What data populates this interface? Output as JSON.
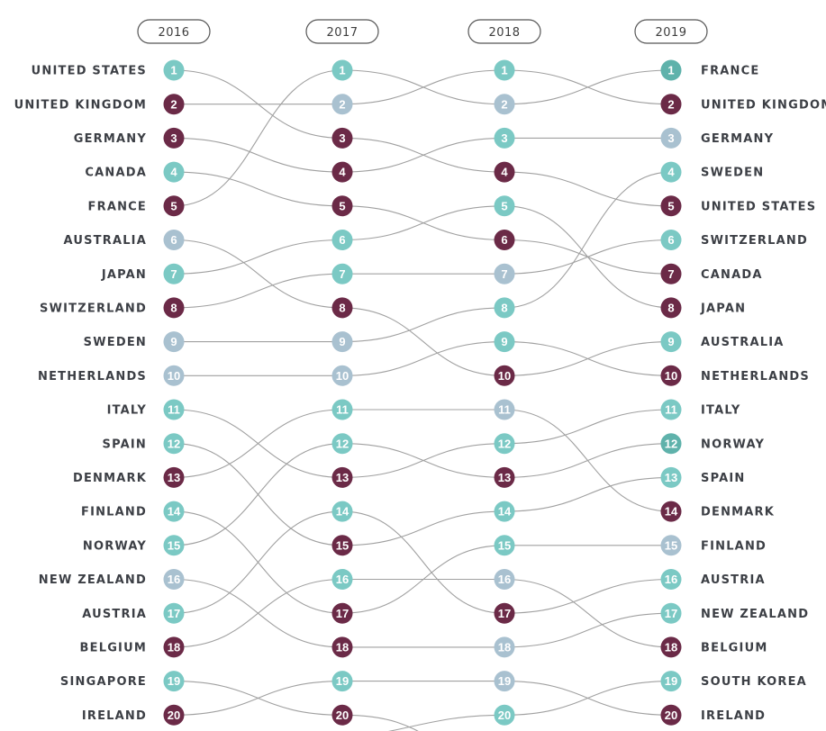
{
  "chart_data": {
    "type": "bump",
    "title": "",
    "years": [
      "2016",
      "2017",
      "2018",
      "2019"
    ],
    "colors": {
      "teal": "#7bc9c4",
      "plum": "#6b2a47",
      "grey": "#a9c1d0",
      "teal_dark": "#5fb2ab",
      "connector": "#a0a0a0"
    },
    "countries": [
      {
        "name": "UNITED STATES",
        "ranks": [
          1,
          3,
          4,
          5
        ]
      },
      {
        "name": "UNITED KINGDOM",
        "ranks": [
          2,
          2,
          1,
          2
        ]
      },
      {
        "name": "GERMANY",
        "ranks": [
          3,
          4,
          3,
          3
        ]
      },
      {
        "name": "CANADA",
        "ranks": [
          4,
          5,
          6,
          7
        ]
      },
      {
        "name": "FRANCE",
        "ranks": [
          5,
          1,
          2,
          1
        ]
      },
      {
        "name": "AUSTRALIA",
        "ranks": [
          6,
          8,
          10,
          9
        ]
      },
      {
        "name": "JAPAN",
        "ranks": [
          7,
          6,
          5,
          8
        ]
      },
      {
        "name": "SWITZERLAND",
        "ranks": [
          8,
          7,
          7,
          6
        ]
      },
      {
        "name": "SWEDEN",
        "ranks": [
          9,
          9,
          8,
          4
        ]
      },
      {
        "name": "NETHERLANDS",
        "ranks": [
          10,
          10,
          9,
          10
        ]
      },
      {
        "name": "ITALY",
        "ranks": [
          11,
          13,
          12,
          11
        ]
      },
      {
        "name": "SPAIN",
        "ranks": [
          12,
          15,
          14,
          13
        ]
      },
      {
        "name": "DENMARK",
        "ranks": [
          13,
          11,
          11,
          14
        ]
      },
      {
        "name": "FINLAND",
        "ranks": [
          14,
          17,
          15,
          15
        ]
      },
      {
        "name": "NORWAY",
        "ranks": [
          15,
          12,
          13,
          12
        ]
      },
      {
        "name": "NEW ZEALAND",
        "ranks": [
          16,
          18,
          18,
          17
        ]
      },
      {
        "name": "AUSTRIA",
        "ranks": [
          17,
          14,
          17,
          16
        ]
      },
      {
        "name": "BELGIUM",
        "ranks": [
          18,
          16,
          16,
          18
        ]
      },
      {
        "name": "SINGAPORE",
        "ranks": [
          19,
          20,
          null,
          null
        ]
      },
      {
        "name": "IRELAND",
        "ranks": [
          20,
          19,
          19,
          20
        ]
      },
      {
        "name": "SOUTH KOREA",
        "ranks": [
          null,
          null,
          20,
          19
        ]
      }
    ],
    "left_labels": [
      "UNITED STATES",
      "UNITED KINGDOM",
      "GERMANY",
      "CANADA",
      "FRANCE",
      "AUSTRALIA",
      "JAPAN",
      "SWITZERLAND",
      "SWEDEN",
      "NETHERLANDS",
      "ITALY",
      "SPAIN",
      "DENMARK",
      "FINLAND",
      "NORWAY",
      "NEW ZEALAND",
      "AUSTRIA",
      "BELGIUM",
      "SINGAPORE",
      "IRELAND"
    ],
    "right_labels": [
      "FRANCE",
      "UNITED KINGDOM",
      "GERMANY",
      "SWEDEN",
      "UNITED STATES",
      "SWITZERLAND",
      "CANADA",
      "JAPAN",
      "AUSTRALIA",
      "NETHERLANDS",
      "ITALY",
      "NORWAY",
      "SPAIN",
      "DENMARK",
      "FINLAND",
      "AUSTRIA",
      "NEW ZEALAND",
      "BELGIUM",
      "SOUTH KOREA",
      "IRELAND"
    ],
    "circle_colors": [
      [
        "teal",
        "plum",
        "plum",
        "teal",
        "plum",
        "grey",
        "teal",
        "plum",
        "grey",
        "grey",
        "teal",
        "teal",
        "plum",
        "teal",
        "teal",
        "grey",
        "teal",
        "plum",
        "teal",
        "plum"
      ],
      [
        "teal",
        "grey",
        "plum",
        "plum",
        "plum",
        "teal",
        "teal",
        "plum",
        "grey",
        "grey",
        "teal",
        "teal",
        "plum",
        "teal",
        "plum",
        "teal",
        "plum",
        "plum",
        "teal",
        "plum"
      ],
      [
        "teal",
        "grey",
        "teal",
        "plum",
        "teal",
        "plum",
        "grey",
        "teal",
        "teal",
        "plum",
        "grey",
        "teal",
        "plum",
        "teal",
        "teal",
        "grey",
        "plum",
        "grey",
        "grey",
        "teal"
      ],
      [
        "teal_dark",
        "plum",
        "grey",
        "teal",
        "plum",
        "teal",
        "plum",
        "plum",
        "teal",
        "plum",
        "teal",
        "teal_dark",
        "teal",
        "plum",
        "grey",
        "teal",
        "teal",
        "plum",
        "teal",
        "plum"
      ]
    ]
  }
}
